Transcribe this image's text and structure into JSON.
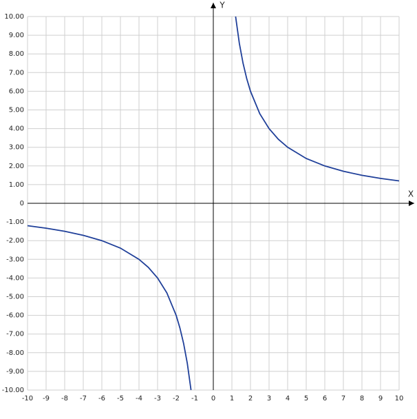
{
  "chart_data": {
    "type": "line",
    "x_label": "X",
    "y_label": "Y",
    "x": [
      -10,
      -9,
      -8,
      -7,
      -6,
      -5,
      -4,
      -3.5,
      -3,
      -2.5,
      -2,
      -1.8,
      -1.6,
      -1.4,
      -1.2,
      0,
      1.2,
      1.4,
      1.6,
      1.8,
      2,
      2.5,
      3,
      3.5,
      4,
      5,
      6,
      7,
      8,
      9,
      10
    ],
    "values": [
      -1.2,
      -1.333,
      -1.5,
      -1.714,
      -2,
      -2.4,
      -3,
      -3.429,
      -4,
      -4.8,
      -6,
      -6.667,
      -7.5,
      -8.571,
      -10,
      null,
      10,
      8.571,
      7.5,
      6.667,
      6,
      4.8,
      4,
      3.429,
      3,
      2.4,
      2,
      1.714,
      1.5,
      1.333,
      1.2
    ],
    "color": "#1f3f99",
    "xlim": [
      -10,
      10
    ],
    "ylim": [
      -10,
      10
    ],
    "xticks": [
      -10,
      -9,
      -8,
      -7,
      -6,
      -5,
      -4,
      -3,
      -2,
      -1,
      0,
      1,
      2,
      3,
      4,
      5,
      6,
      7,
      8,
      9,
      10
    ],
    "yticks": [
      {
        "value": -10,
        "label": "-10.00"
      },
      {
        "value": -9,
        "label": "-9.00"
      },
      {
        "value": -8,
        "label": "-8.00"
      },
      {
        "value": -7,
        "label": "-7.00"
      },
      {
        "value": -6,
        "label": "-6.00"
      },
      {
        "value": -5,
        "label": "-5.00"
      },
      {
        "value": -4,
        "label": "-4.00"
      },
      {
        "value": -3,
        "label": "-3.00"
      },
      {
        "value": -2,
        "label": "-2.00"
      },
      {
        "value": -1,
        "label": "-1.00"
      },
      0,
      {
        "value": 1,
        "label": "1.00"
      },
      {
        "value": 2,
        "label": "2.00"
      },
      {
        "value": 3,
        "label": "3.00"
      },
      {
        "value": 4,
        "label": "4.00"
      },
      {
        "value": 5,
        "label": "5.00"
      },
      {
        "value": 6,
        "label": "6.00"
      },
      {
        "value": 7,
        "label": "7.00"
      },
      {
        "value": 8,
        "label": "8.00"
      },
      {
        "value": 9,
        "label": "9.00"
      },
      {
        "value": 10,
        "label": "10.00"
      }
    ],
    "grid": true
  }
}
